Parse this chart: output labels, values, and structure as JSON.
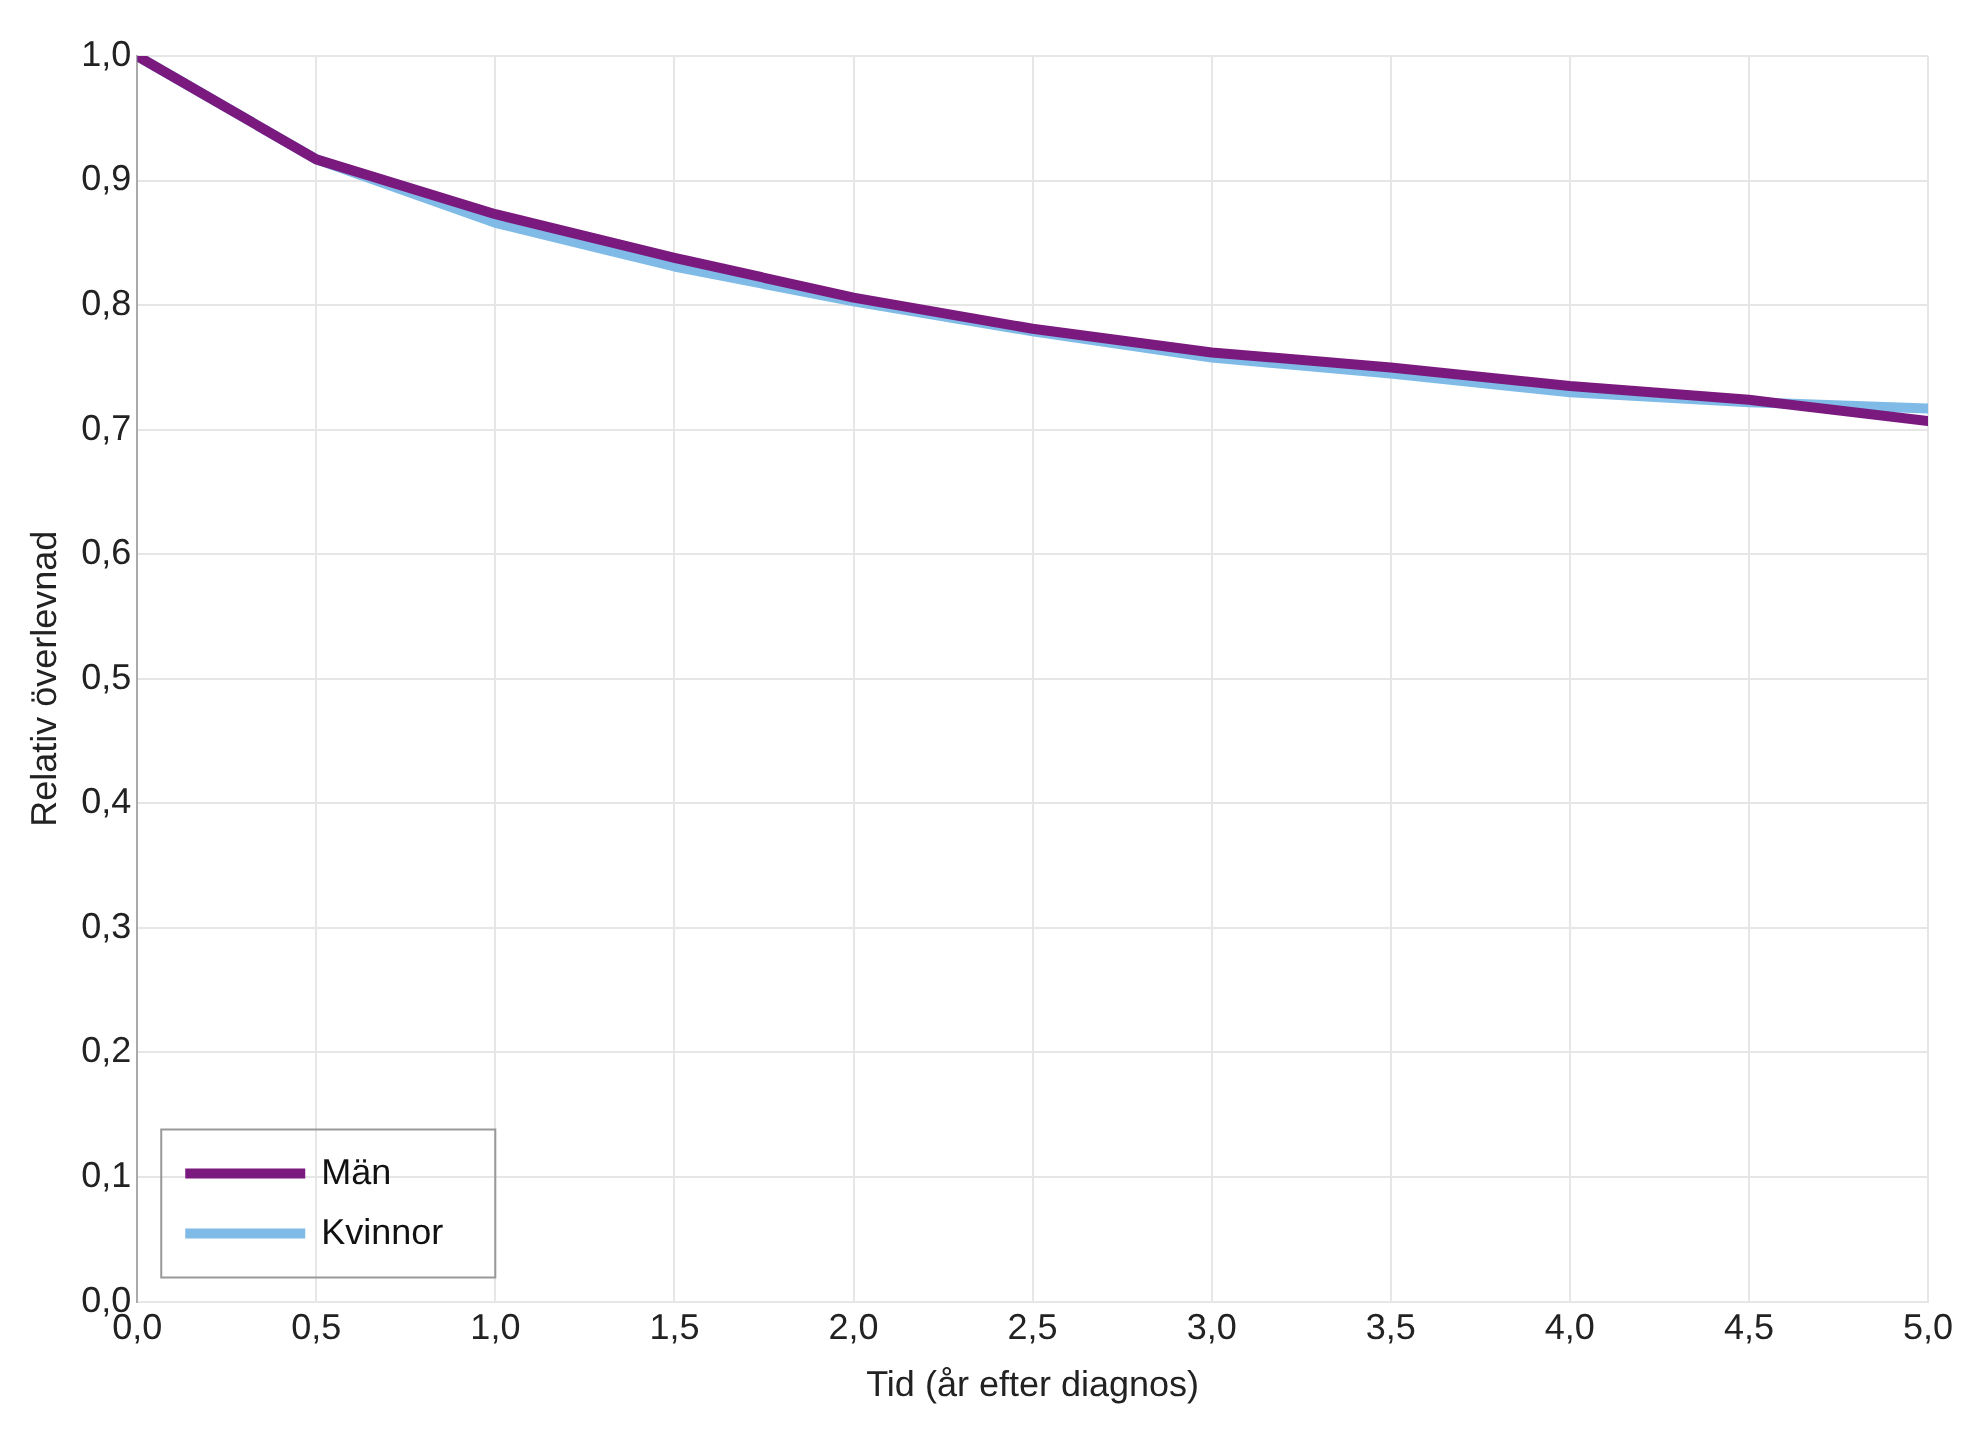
{
  "chart_data": {
    "type": "line",
    "xlabel": "Tid (år efter diagnos)",
    "ylabel": "Relativ överlevnad",
    "x": [
      0,
      0.5,
      1,
      1.5,
      2,
      2.5,
      3,
      3.5,
      4,
      4.5,
      5
    ],
    "series": [
      {
        "name": "Män",
        "color": "#7b1a7e",
        "values": [
          1.0,
          0.917,
          0.873,
          0.838,
          0.806,
          0.781,
          0.762,
          0.75,
          0.735,
          0.724,
          0.707
        ]
      },
      {
        "name": "Kvinnor",
        "color": "#7fbbe6",
        "values": [
          1.0,
          0.917,
          0.866,
          0.831,
          0.803,
          0.779,
          0.758,
          0.745,
          0.73,
          0.722,
          0.717
        ]
      }
    ],
    "xlim": [
      0,
      5
    ],
    "ylim": [
      0,
      1
    ],
    "xticks": [
      {
        "value": 0,
        "label": "0,0"
      },
      {
        "value": 0.5,
        "label": "0,5"
      },
      {
        "value": 1,
        "label": "1,0"
      },
      {
        "value": 1.5,
        "label": "1,5"
      },
      {
        "value": 2,
        "label": "2,0"
      },
      {
        "value": 2.5,
        "label": "2,5"
      },
      {
        "value": 3,
        "label": "3,0"
      },
      {
        "value": 3.5,
        "label": "3,5"
      },
      {
        "value": 4,
        "label": "4,0"
      },
      {
        "value": 4.5,
        "label": "4,5"
      },
      {
        "value": 5,
        "label": "5,0"
      }
    ],
    "yticks": [
      {
        "value": 0,
        "label": "0,0"
      },
      {
        "value": 0.1,
        "label": "0,1"
      },
      {
        "value": 0.2,
        "label": "0,2"
      },
      {
        "value": 0.3,
        "label": "0,3"
      },
      {
        "value": 0.4,
        "label": "0,4"
      },
      {
        "value": 0.5,
        "label": "0,5"
      },
      {
        "value": 0.6,
        "label": "0,6"
      },
      {
        "value": 0.7,
        "label": "0,7"
      },
      {
        "value": 0.8,
        "label": "0,8"
      },
      {
        "value": 0.9,
        "label": "0,9"
      },
      {
        "value": 1,
        "label": "1,0"
      }
    ],
    "grid": true,
    "legend": "bottom left",
    "marker": "none",
    "line_style": "solid"
  }
}
